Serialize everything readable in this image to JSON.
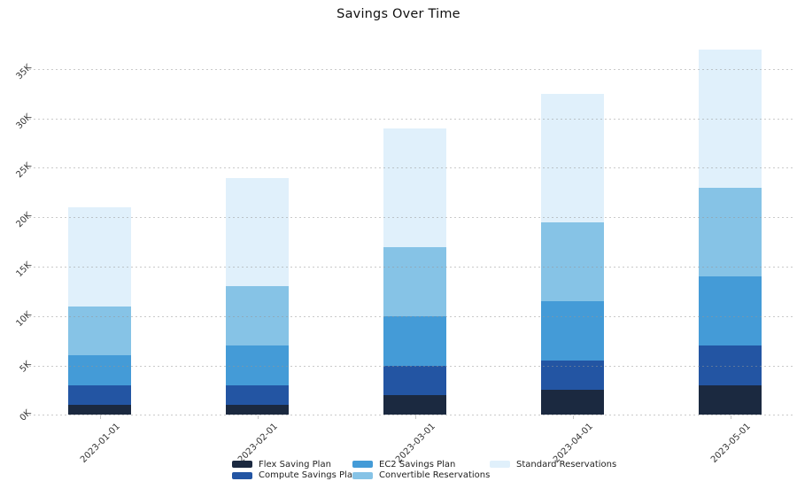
{
  "chart_data": {
    "type": "bar",
    "stacked": true,
    "title": "Savings Over Time",
    "categories": [
      "2023-01-01",
      "2023-02-01",
      "2023-03-01",
      "2023-04-01",
      "2023-05-01"
    ],
    "series": [
      {
        "name": "Flex Saving Plan",
        "color": "#1b2940",
        "values": [
          1000,
          1000,
          2000,
          2500,
          3000
        ]
      },
      {
        "name": "Compute Savings Plan",
        "color": "#2355a3",
        "values": [
          2000,
          2000,
          3000,
          3000,
          4000
        ]
      },
      {
        "name": "EC2 Savings Plan",
        "color": "#449bd7",
        "values": [
          3000,
          4000,
          5000,
          6000,
          7000
        ]
      },
      {
        "name": "Convertible Reservations",
        "color": "#86c3e6",
        "values": [
          5000,
          6000,
          7000,
          8000,
          9000
        ]
      },
      {
        "name": "Standard Reservations",
        "color": "#e0f0fb",
        "values": [
          10000,
          11000,
          12000,
          13000,
          14000
        ]
      }
    ],
    "totals": [
      21000,
      24000,
      29000,
      32500,
      37000
    ],
    "y_ticks": [
      "0K",
      "5K",
      "10K",
      "15K",
      "20K",
      "25K",
      "30K",
      "35K"
    ],
    "y_tick_values": [
      0,
      5000,
      10000,
      15000,
      20000,
      25000,
      30000,
      35000
    ],
    "ylim": [
      0,
      35000
    ],
    "xlabel": "",
    "ylabel": "",
    "grid": true,
    "legend_position": "bottom"
  },
  "colors": {
    "background": "#ffffff",
    "gridline": "#d8d8d8",
    "tick_label": "#333333",
    "title": "#111111",
    "legend_text": "#222222"
  }
}
